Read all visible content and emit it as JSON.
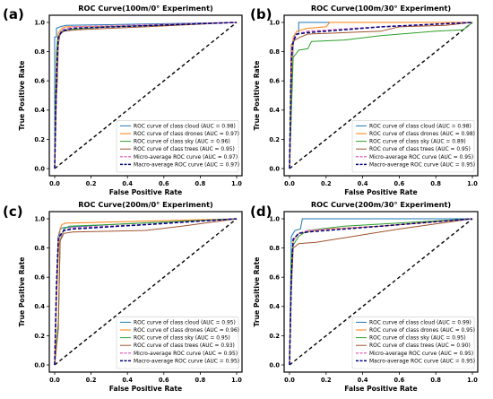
{
  "chart_data": [
    {
      "panel": "(a)",
      "type": "line",
      "title": "ROC Curve(100m/0° Experiment)",
      "xlabel": "False Positive Rate",
      "ylabel": "True Positive Rate",
      "xlim": [
        0,
        1
      ],
      "ylim": [
        0,
        1
      ],
      "xticks": [
        "0.0",
        "0.2",
        "0.4",
        "0.6",
        "0.8",
        "1.0"
      ],
      "yticks": [
        "0.0",
        "0.2",
        "0.4",
        "0.6",
        "0.8",
        "1.0"
      ],
      "legend_position": "lower-right",
      "series": [
        {
          "name": "ROC curve of class cloud (AUC = 0.98)",
          "color": "#1f77b4",
          "dash": "solid",
          "x": [
            0,
            0,
            0.01,
            0.01,
            0.03,
            0.06,
            1
          ],
          "y": [
            0,
            0.9,
            0.9,
            0.96,
            0.97,
            0.98,
            1
          ]
        },
        {
          "name": "ROC curve of class drones (AUC = 0.97)",
          "color": "#ff7f0e",
          "dash": "solid",
          "x": [
            0,
            0.005,
            0.01,
            0.02,
            0.04,
            0.06,
            0.6,
            1
          ],
          "y": [
            0,
            0.5,
            0.8,
            0.93,
            0.96,
            0.97,
            0.98,
            1
          ]
        },
        {
          "name": "ROC curve of class sky (AUC = 0.96)",
          "color": "#2ca02c",
          "dash": "solid",
          "x": [
            0,
            0.01,
            0.015,
            0.03,
            0.05,
            0.3,
            1
          ],
          "y": [
            0,
            0.72,
            0.88,
            0.93,
            0.95,
            0.97,
            1
          ]
        },
        {
          "name": "ROC curve of class trees (AUC = 0.95)",
          "color": "#a0522d",
          "dash": "solid",
          "x": [
            0,
            0.01,
            0.015,
            0.02,
            0.03,
            0.05,
            0.12,
            0.5,
            1
          ],
          "y": [
            0,
            0.5,
            0.6,
            0.85,
            0.92,
            0.94,
            0.95,
            0.97,
            1
          ]
        },
        {
          "name": "Micro-average ROC curve (AUC = 0.97)",
          "color": "#e377c2",
          "dash": "dashed",
          "x": [
            0,
            0.01,
            0.02,
            0.04,
            0.1,
            1
          ],
          "y": [
            0,
            0.6,
            0.9,
            0.95,
            0.97,
            1
          ]
        },
        {
          "name": "Macro-average ROC curve (AUC = 0.97)",
          "color": "#000080",
          "dash": "dashed",
          "x": [
            0,
            0.01,
            0.02,
            0.04,
            0.1,
            1
          ],
          "y": [
            0,
            0.65,
            0.9,
            0.94,
            0.96,
            1
          ]
        }
      ]
    },
    {
      "panel": "(b)",
      "type": "line",
      "title": "ROC Curve(100m/30° Experiment)",
      "xlabel": "False Positive Rate",
      "ylabel": "True Positive Rate",
      "xlim": [
        0,
        1
      ],
      "ylim": [
        0,
        1
      ],
      "xticks": [
        "0.0",
        "0.2",
        "0.4",
        "0.6",
        "0.8",
        "1.0"
      ],
      "yticks": [
        "0.0",
        "0.2",
        "0.4",
        "0.6",
        "0.8",
        "1.0"
      ],
      "legend_position": "lower-right",
      "series": [
        {
          "name": "ROC curve of class cloud (AUC = 0.98)",
          "color": "#1f77b4",
          "dash": "solid",
          "x": [
            0,
            0.01,
            0.02,
            0.03,
            0.05,
            0.05,
            1
          ],
          "y": [
            0,
            0.4,
            0.85,
            0.92,
            0.92,
            1,
            1
          ]
        },
        {
          "name": "ROC curve of class drones (AUC = 0.98)",
          "color": "#ff7f0e",
          "dash": "solid",
          "x": [
            0,
            0.01,
            0.02,
            0.04,
            0.1,
            0.2,
            0.22,
            1
          ],
          "y": [
            0,
            0.6,
            0.9,
            0.94,
            0.96,
            0.97,
            1,
            1
          ]
        },
        {
          "name": "ROC curve of class sky (AUC = 0.89)",
          "color": "#2ca02c",
          "dash": "solid",
          "x": [
            0,
            0.02,
            0.05,
            0.1,
            0.12,
            0.3,
            0.5,
            0.8,
            0.95,
            1
          ],
          "y": [
            0,
            0.76,
            0.81,
            0.82,
            0.87,
            0.88,
            0.91,
            0.94,
            0.95,
            1
          ]
        },
        {
          "name": "ROC curve of class trees (AUC = 0.95)",
          "color": "#a0522d",
          "dash": "solid",
          "x": [
            0,
            0.01,
            0.03,
            0.06,
            0.1,
            0.3,
            0.5,
            0.6,
            0.85,
            1
          ],
          "y": [
            0,
            0.85,
            0.88,
            0.9,
            0.92,
            0.93,
            0.94,
            0.97,
            0.98,
            1
          ]
        },
        {
          "name": "Micro-average ROC curve (AUC = 0.95)",
          "color": "#e377c2",
          "dash": "dashed",
          "x": [
            0,
            0.01,
            0.02,
            0.04,
            0.1,
            0.5,
            1
          ],
          "y": [
            0,
            0.7,
            0.88,
            0.92,
            0.94,
            0.97,
            1
          ]
        },
        {
          "name": "Macro-average ROC curve (AUC = 0.95)",
          "color": "#000080",
          "dash": "dashed",
          "x": [
            0,
            0.01,
            0.02,
            0.04,
            0.1,
            0.5,
            1
          ],
          "y": [
            0,
            0.75,
            0.87,
            0.92,
            0.93,
            0.97,
            1
          ]
        }
      ]
    },
    {
      "panel": "(c)",
      "type": "line",
      "title": "ROC Curve(200m/0° Experiment)",
      "xlabel": "False Positive Rate",
      "ylabel": "True Positive Rate",
      "xlim": [
        0,
        1
      ],
      "ylim": [
        0,
        1
      ],
      "xticks": [
        "0.0",
        "0.2",
        "0.4",
        "0.6",
        "0.8",
        "1.0"
      ],
      "yticks": [
        "0.0",
        "0.2",
        "0.4",
        "0.6",
        "0.8",
        "1.0"
      ],
      "legend_position": "lower-right",
      "series": [
        {
          "name": "ROC curve of class cloud (AUC = 0.95)",
          "color": "#1f77b4",
          "dash": "solid",
          "x": [
            0,
            0.01,
            0.02,
            0.03,
            0.05,
            0.3,
            1
          ],
          "y": [
            0,
            0.5,
            0.88,
            0.93,
            0.94,
            0.96,
            1
          ]
        },
        {
          "name": "ROC curve of class drones (AUC = 0.96)",
          "color": "#ff7f0e",
          "dash": "solid",
          "x": [
            0,
            0.01,
            0.02,
            0.03,
            0.04,
            0.06,
            1
          ],
          "y": [
            0,
            0.45,
            0.75,
            0.93,
            0.96,
            0.97,
            1
          ]
        },
        {
          "name": "ROC curve of class sky (AUC = 0.95)",
          "color": "#2ca02c",
          "dash": "solid",
          "x": [
            0,
            0.02,
            0.03,
            0.05,
            0.08,
            0.3,
            1
          ],
          "y": [
            0,
            0.3,
            0.85,
            0.93,
            0.95,
            0.96,
            1
          ]
        },
        {
          "name": "ROC curve of class trees (AUC = 0.93)",
          "color": "#a0522d",
          "dash": "solid",
          "x": [
            0,
            0.02,
            0.03,
            0.05,
            0.1,
            0.5,
            0.7,
            1
          ],
          "y": [
            0,
            0.25,
            0.85,
            0.9,
            0.91,
            0.92,
            0.95,
            1
          ]
        },
        {
          "name": "Micro-average ROC curve (AUC = 0.95)",
          "color": "#e377c2",
          "dash": "dashed",
          "x": [
            0,
            0.01,
            0.02,
            0.05,
            0.1,
            0.5,
            1
          ],
          "y": [
            0,
            0.5,
            0.85,
            0.92,
            0.94,
            0.96,
            1
          ]
        },
        {
          "name": "Macro-average ROC curve (AUC = 0.95)",
          "color": "#000080",
          "dash": "dashed",
          "x": [
            0,
            0.01,
            0.02,
            0.05,
            0.1,
            0.5,
            1
          ],
          "y": [
            0,
            0.55,
            0.87,
            0.92,
            0.93,
            0.96,
            1
          ]
        }
      ]
    },
    {
      "panel": "(d)",
      "type": "line",
      "title": "ROC Curve(200m/30° Experiment)",
      "xlabel": "False Positive Rate",
      "ylabel": "True Positive Rate",
      "xlim": [
        0,
        1
      ],
      "ylim": [
        0,
        1
      ],
      "xticks": [
        "0.0",
        "0.2",
        "0.4",
        "0.6",
        "0.8",
        "1.0"
      ],
      "yticks": [
        "0.0",
        "0.2",
        "0.4",
        "0.6",
        "0.8",
        "1.0"
      ],
      "legend_position": "lower-right",
      "series": [
        {
          "name": "ROC curve of class cloud (AUC = 0.99)",
          "color": "#1f77b4",
          "dash": "solid",
          "x": [
            0,
            0.01,
            0.02,
            0.03,
            0.06,
            0.07,
            1
          ],
          "y": [
            0,
            0.88,
            0.9,
            0.92,
            0.93,
            1,
            1
          ]
        },
        {
          "name": "ROC curve of class drones (AUC = 0.95)",
          "color": "#ff7f0e",
          "dash": "solid",
          "x": [
            0,
            0.01,
            0.02,
            0.05,
            0.2,
            0.5,
            0.7,
            1
          ],
          "y": [
            0,
            0.6,
            0.85,
            0.9,
            0.93,
            0.95,
            0.97,
            1
          ]
        },
        {
          "name": "ROC curve of class sky (AUC = 0.95)",
          "color": "#2ca02c",
          "dash": "solid",
          "x": [
            0,
            0.01,
            0.02,
            0.05,
            0.1,
            0.3,
            1
          ],
          "y": [
            0,
            0.75,
            0.82,
            0.88,
            0.92,
            0.95,
            1
          ]
        },
        {
          "name": "ROC curve of class trees (AUC = 0.90)",
          "color": "#a0522d",
          "dash": "solid",
          "x": [
            0,
            0.01,
            0.02,
            0.05,
            0.15,
            0.3,
            0.45,
            0.6,
            1
          ],
          "y": [
            0,
            0.5,
            0.8,
            0.83,
            0.84,
            0.87,
            0.9,
            0.93,
            1
          ]
        },
        {
          "name": "Micro-average ROC curve (AUC = 0.95)",
          "color": "#e377c2",
          "dash": "dashed",
          "x": [
            0,
            0.01,
            0.02,
            0.05,
            0.1,
            0.5,
            1
          ],
          "y": [
            0,
            0.55,
            0.85,
            0.9,
            0.92,
            0.95,
            1
          ]
        },
        {
          "name": "Macro-average ROC curve (AUC = 0.95)",
          "color": "#000080",
          "dash": "dashed",
          "x": [
            0,
            0.01,
            0.02,
            0.05,
            0.1,
            0.5,
            1
          ],
          "y": [
            0,
            0.6,
            0.86,
            0.9,
            0.91,
            0.95,
            1
          ]
        }
      ]
    }
  ]
}
